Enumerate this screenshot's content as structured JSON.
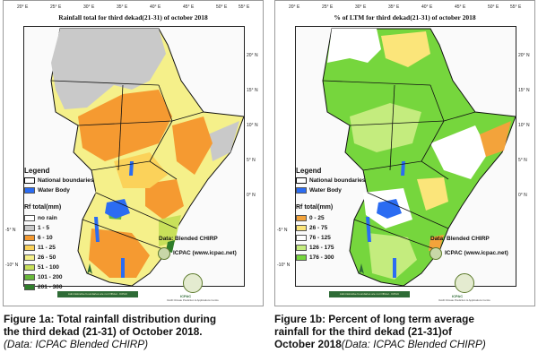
{
  "colors": {
    "rain_gray": "#c9c9c9",
    "rain_orange": "#f59a31",
    "rain_light_yellow": "#fbe57a",
    "rain_yellow_green": "#c8e05a",
    "rain_green": "#68b83a",
    "rain_dark_green": "#2f7d2a",
    "water": "#2b6cf2",
    "pct_green": "#76d63d",
    "pct_light_green": "#c4ec7e",
    "pct_white": "#ffffff",
    "pct_orange": "#f3a33b",
    "boundary": "#111111"
  },
  "panel1": {
    "title": "Rainfall total  for third dekad(21-31)  of october 2018",
    "lon_ticks": [
      "20° E",
      "25° E",
      "30° E",
      "35° E",
      "40° E",
      "45° E",
      "50° E",
      "55° E"
    ],
    "lat_ticks": [
      "20° N",
      "15° N",
      "10° N",
      "5° N",
      "0° N",
      "-5° N",
      "-10° N"
    ],
    "legend": {
      "title": "Legend",
      "national_boundaries": "National boundaries",
      "water_body": "Water Body",
      "rf_title": "Rf total(mm)",
      "classes": [
        {
          "label": "no rain",
          "color": "#ffffff"
        },
        {
          "label": "1 - 5",
          "color": "#c9c9c9"
        },
        {
          "label": "6 - 10",
          "color": "#f59a31"
        },
        {
          "label": "11 - 25",
          "color": "#fbd25a"
        },
        {
          "label": "26 - 50",
          "color": "#f5f08a"
        },
        {
          "label": "51 - 100",
          "color": "#c8e05a"
        },
        {
          "label": "101 - 200",
          "color": "#68b83a"
        },
        {
          "label": "201 - 300",
          "color": "#2f7d2a"
        }
      ]
    },
    "data_source": "Data: Blended CHIRP",
    "credit": "ICPAC (www.icpac.net)",
    "caption_lines": [
      "Figure 1a: Total rainfall distribution during",
      "the third dekad (21-31) of October 2018."
    ],
    "caption_note": "(Data: ICPAC Blended CHIRP)"
  },
  "panel2": {
    "title": "% of LTM  for third dekad(21-31)  of october 2018",
    "lon_ticks": [
      "20° E",
      "25° E",
      "30° E",
      "35° E",
      "40° E",
      "45° E",
      "50° E",
      "55° E"
    ],
    "lat_ticks": [
      "20° N",
      "15° N",
      "10° N",
      "5° N",
      "0° N",
      "-5° N",
      "-10° N"
    ],
    "legend": {
      "title": "Legend",
      "national_boundaries": "National boundaries",
      "water_body": "Water Body",
      "rf_title": "Rf total(mm)",
      "classes": [
        {
          "label": "0 - 25",
          "color": "#f3a33b"
        },
        {
          "label": "26 - 75",
          "color": "#fbe57a"
        },
        {
          "label": "76 - 125",
          "color": "#ffffff"
        },
        {
          "label": "126 - 175",
          "color": "#c4ec7e"
        },
        {
          "label": "176 - 300",
          "color": "#76d63d"
        }
      ]
    },
    "data_source": "Data: Blended CHIRP",
    "credit": "ICPAC (www.icpac.net)",
    "caption_lines": [
      "Figure 1b: Percent of long term average",
      "rainfall for the third  dekad (21-31)of"
    ],
    "caption_line3": "October 2018",
    "caption_note": "(Data: ICPAC Blended CHIRP)"
  },
  "org": {
    "name": "ICPAC",
    "sub": "IGAD Climate Prediction & Applications Centre",
    "band": "Administrative boundaries are not Official - ICPAC"
  }
}
